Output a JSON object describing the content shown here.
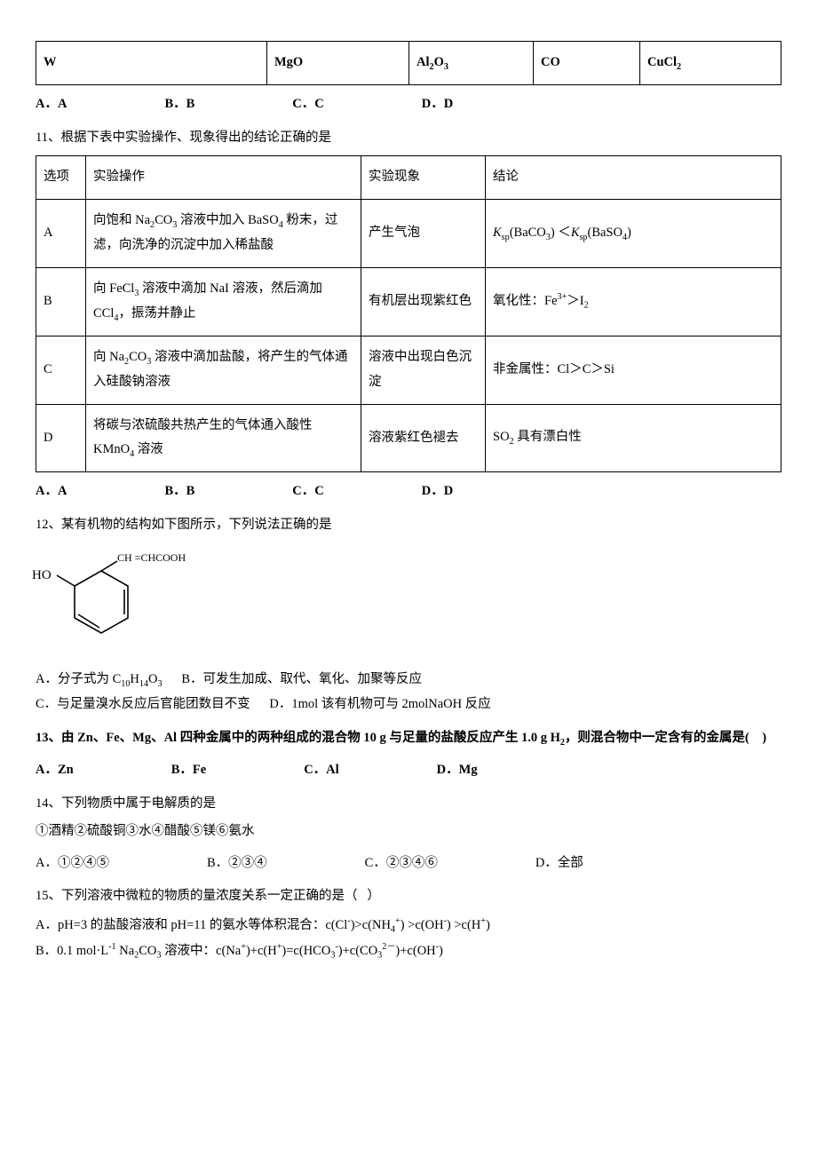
{
  "table1": {
    "col_widths": [
      "260px",
      "160px",
      "140px",
      "120px",
      ""
    ],
    "row": [
      "W",
      "MgO",
      "Al<sub>2</sub>O<sub>3</sub>",
      "CO",
      "CuCl<sub>2</sub>"
    ]
  },
  "opts_after_t1": [
    "A．A",
    "B．B",
    "C．C",
    "D．D"
  ],
  "q11": {
    "stem": "11、根据下表中实验操作、现象得出的结论正确的是",
    "header": [
      "选项",
      "实验操作",
      "实验现象",
      "结论"
    ],
    "rows": [
      {
        "opt": "A",
        "op": "向饱和 Na<sub>2</sub>CO<sub>3</sub> 溶液中加入 BaSO<sub>4</sub> 粉末，过滤，向洗净的沉淀中加入稀盐酸",
        "phen": "产生气泡",
        "concl": "<span class=\"italic\">K</span><sub>sp</sub>(BaCO<sub>3</sub>) ＜<span class=\"italic\">K</span><sub>sp</sub>(BaSO<sub>4</sub>)"
      },
      {
        "opt": "B",
        "op": "向 FeCl<sub>3</sub> 溶液中滴加 NaI 溶液，然后滴加 CCl<sub>4</sub>，振荡并静止",
        "phen": "有机层出现紫红色",
        "concl": "氧化性：Fe<sup>3+</sup>＞I<sub>2</sub>"
      },
      {
        "opt": "C",
        "op": "向 Na<sub>2</sub>CO<sub>3</sub> 溶液中滴加盐酸，将产生的气体通入硅酸钠溶液",
        "phen": "溶液中出现白色沉淀",
        "concl": "非金属性：Cl＞C＞Si"
      },
      {
        "opt": "D",
        "op": "将碳与浓硫酸共热产生的气体通入酸性 KMnO<sub>4</sub> 溶液",
        "phen": "溶液紫红色褪去",
        "concl": "SO<sub>2</sub> 具有漂白性"
      }
    ],
    "opts": [
      "A．A",
      "B．B",
      "C．C",
      "D．D"
    ]
  },
  "q12": {
    "stem": "12、某有机物的结构如下图所示，下列说法正确的是",
    "mol": {
      "ho": "HO",
      "side": "CH =CHCOOH"
    },
    "line1_a": "A．分子式为 C<sub>10</sub>H<sub>14</sub>O<sub>3</sub>",
    "line1_b": "B．可发生加成、取代、氧化、加聚等反应",
    "line2_c": "C．与足量溴水反应后官能团数目不变",
    "line2_d": "D．1mol 该有机物可与 2molNaOH 反应"
  },
  "q13": {
    "stem": "13、由 Zn、Fe、Mg、Al 四种金属中的两种组成的混合物 10 g 与足量的盐酸反应产生 1.0 g H<sub>2</sub>，则混合物中一定含有的金属是(&nbsp;&nbsp;&nbsp;&nbsp;)",
    "opts": [
      "A．Zn",
      "B．Fe",
      "C．Al",
      "D．Mg"
    ]
  },
  "q14": {
    "stem": "14、下列物质中属于电解质的是",
    "list": "①酒精②硫酸铜③水④醋酸⑤镁⑥氨水",
    "opts": [
      "A．①②④⑤",
      "B．②③④",
      "C．②③④⑥",
      "D．全部"
    ]
  },
  "q15": {
    "stem": "15、下列溶液中微粒的物质的量浓度关系一定正确的是（&nbsp;&nbsp;&nbsp;）",
    "a": "A．pH=3 的盐酸溶液和 pH=11 的氨水等体积混合：c(Cl<sup>-</sup>)>c(NH<sub>4</sub><sup>+</sup>) >c(OH<sup>-</sup>) >c(H<sup>+</sup>)",
    "b": "B．0.1 mol·L<sup>-1</sup> Na<sub>2</sub>CO<sub>3</sub> 溶液中：c(Na<sup>+</sup>)+c(H<sup>+</sup>)=c(HCO<sub>3</sub><sup>-</sup>)+c(CO<sub>3</sub><sup>2－</sup>)+c(OH<sup>-</sup>)"
  }
}
